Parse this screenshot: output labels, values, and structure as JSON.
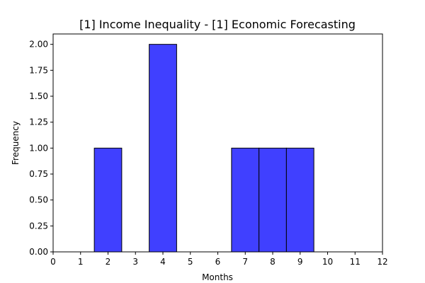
{
  "chart_data": {
    "type": "bar",
    "title": "[1] Income Inequality - [1] Economic Forecasting",
    "xlabel": "Months",
    "ylabel": "Frequency",
    "xlim": [
      0,
      12
    ],
    "ylim": [
      0,
      2.1
    ],
    "x_ticks": [
      0,
      1,
      2,
      3,
      4,
      5,
      6,
      7,
      8,
      9,
      10,
      11,
      12
    ],
    "y_ticks": [
      "0.00",
      "0.25",
      "0.50",
      "0.75",
      "1.00",
      "1.25",
      "1.50",
      "1.75",
      "2.00"
    ],
    "bars": [
      {
        "x_start": 1.5,
        "x_end": 2.5,
        "value": 1
      },
      {
        "x_start": 3.5,
        "x_end": 4.5,
        "value": 2
      },
      {
        "x_start": 6.5,
        "x_end": 7.5,
        "value": 1
      },
      {
        "x_start": 7.5,
        "x_end": 8.5,
        "value": 1
      },
      {
        "x_start": 8.5,
        "x_end": 9.5,
        "value": 1
      }
    ],
    "bar_color": "#4040ff",
    "edge_color": "#000000",
    "grid": false,
    "legend": "none"
  }
}
